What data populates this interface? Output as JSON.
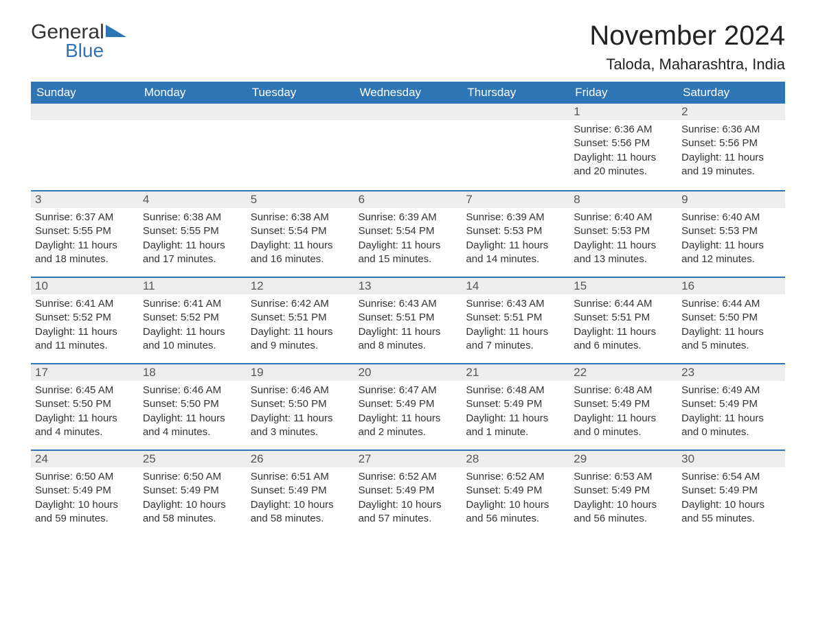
{
  "logo": {
    "general": "General",
    "blue": "Blue"
  },
  "title": "November 2024",
  "location": "Taloda, Maharashtra, India",
  "colors": {
    "header_bg": "#2e75b6",
    "header_text": "#ffffff",
    "row_divider": "#2e75b6",
    "daynum_bg": "#ededed",
    "daynum_text": "#555555",
    "body_text": "#333333",
    "page_bg": "#ffffff"
  },
  "typography": {
    "title_fontsize": 40,
    "location_fontsize": 22,
    "dow_fontsize": 17,
    "body_fontsize": 15
  },
  "days_of_week": [
    "Sunday",
    "Monday",
    "Tuesday",
    "Wednesday",
    "Thursday",
    "Friday",
    "Saturday"
  ],
  "weeks": [
    [
      null,
      null,
      null,
      null,
      null,
      {
        "num": "1",
        "sunrise": "Sunrise: 6:36 AM",
        "sunset": "Sunset: 5:56 PM",
        "daylight": "Daylight: 11 hours and 20 minutes."
      },
      {
        "num": "2",
        "sunrise": "Sunrise: 6:36 AM",
        "sunset": "Sunset: 5:56 PM",
        "daylight": "Daylight: 11 hours and 19 minutes."
      }
    ],
    [
      {
        "num": "3",
        "sunrise": "Sunrise: 6:37 AM",
        "sunset": "Sunset: 5:55 PM",
        "daylight": "Daylight: 11 hours and 18 minutes."
      },
      {
        "num": "4",
        "sunrise": "Sunrise: 6:38 AM",
        "sunset": "Sunset: 5:55 PM",
        "daylight": "Daylight: 11 hours and 17 minutes."
      },
      {
        "num": "5",
        "sunrise": "Sunrise: 6:38 AM",
        "sunset": "Sunset: 5:54 PM",
        "daylight": "Daylight: 11 hours and 16 minutes."
      },
      {
        "num": "6",
        "sunrise": "Sunrise: 6:39 AM",
        "sunset": "Sunset: 5:54 PM",
        "daylight": "Daylight: 11 hours and 15 minutes."
      },
      {
        "num": "7",
        "sunrise": "Sunrise: 6:39 AM",
        "sunset": "Sunset: 5:53 PM",
        "daylight": "Daylight: 11 hours and 14 minutes."
      },
      {
        "num": "8",
        "sunrise": "Sunrise: 6:40 AM",
        "sunset": "Sunset: 5:53 PM",
        "daylight": "Daylight: 11 hours and 13 minutes."
      },
      {
        "num": "9",
        "sunrise": "Sunrise: 6:40 AM",
        "sunset": "Sunset: 5:53 PM",
        "daylight": "Daylight: 11 hours and 12 minutes."
      }
    ],
    [
      {
        "num": "10",
        "sunrise": "Sunrise: 6:41 AM",
        "sunset": "Sunset: 5:52 PM",
        "daylight": "Daylight: 11 hours and 11 minutes."
      },
      {
        "num": "11",
        "sunrise": "Sunrise: 6:41 AM",
        "sunset": "Sunset: 5:52 PM",
        "daylight": "Daylight: 11 hours and 10 minutes."
      },
      {
        "num": "12",
        "sunrise": "Sunrise: 6:42 AM",
        "sunset": "Sunset: 5:51 PM",
        "daylight": "Daylight: 11 hours and 9 minutes."
      },
      {
        "num": "13",
        "sunrise": "Sunrise: 6:43 AM",
        "sunset": "Sunset: 5:51 PM",
        "daylight": "Daylight: 11 hours and 8 minutes."
      },
      {
        "num": "14",
        "sunrise": "Sunrise: 6:43 AM",
        "sunset": "Sunset: 5:51 PM",
        "daylight": "Daylight: 11 hours and 7 minutes."
      },
      {
        "num": "15",
        "sunrise": "Sunrise: 6:44 AM",
        "sunset": "Sunset: 5:51 PM",
        "daylight": "Daylight: 11 hours and 6 minutes."
      },
      {
        "num": "16",
        "sunrise": "Sunrise: 6:44 AM",
        "sunset": "Sunset: 5:50 PM",
        "daylight": "Daylight: 11 hours and 5 minutes."
      }
    ],
    [
      {
        "num": "17",
        "sunrise": "Sunrise: 6:45 AM",
        "sunset": "Sunset: 5:50 PM",
        "daylight": "Daylight: 11 hours and 4 minutes."
      },
      {
        "num": "18",
        "sunrise": "Sunrise: 6:46 AM",
        "sunset": "Sunset: 5:50 PM",
        "daylight": "Daylight: 11 hours and 4 minutes."
      },
      {
        "num": "19",
        "sunrise": "Sunrise: 6:46 AM",
        "sunset": "Sunset: 5:50 PM",
        "daylight": "Daylight: 11 hours and 3 minutes."
      },
      {
        "num": "20",
        "sunrise": "Sunrise: 6:47 AM",
        "sunset": "Sunset: 5:49 PM",
        "daylight": "Daylight: 11 hours and 2 minutes."
      },
      {
        "num": "21",
        "sunrise": "Sunrise: 6:48 AM",
        "sunset": "Sunset: 5:49 PM",
        "daylight": "Daylight: 11 hours and 1 minute."
      },
      {
        "num": "22",
        "sunrise": "Sunrise: 6:48 AM",
        "sunset": "Sunset: 5:49 PM",
        "daylight": "Daylight: 11 hours and 0 minutes."
      },
      {
        "num": "23",
        "sunrise": "Sunrise: 6:49 AM",
        "sunset": "Sunset: 5:49 PM",
        "daylight": "Daylight: 11 hours and 0 minutes."
      }
    ],
    [
      {
        "num": "24",
        "sunrise": "Sunrise: 6:50 AM",
        "sunset": "Sunset: 5:49 PM",
        "daylight": "Daylight: 10 hours and 59 minutes."
      },
      {
        "num": "25",
        "sunrise": "Sunrise: 6:50 AM",
        "sunset": "Sunset: 5:49 PM",
        "daylight": "Daylight: 10 hours and 58 minutes."
      },
      {
        "num": "26",
        "sunrise": "Sunrise: 6:51 AM",
        "sunset": "Sunset: 5:49 PM",
        "daylight": "Daylight: 10 hours and 58 minutes."
      },
      {
        "num": "27",
        "sunrise": "Sunrise: 6:52 AM",
        "sunset": "Sunset: 5:49 PM",
        "daylight": "Daylight: 10 hours and 57 minutes."
      },
      {
        "num": "28",
        "sunrise": "Sunrise: 6:52 AM",
        "sunset": "Sunset: 5:49 PM",
        "daylight": "Daylight: 10 hours and 56 minutes."
      },
      {
        "num": "29",
        "sunrise": "Sunrise: 6:53 AM",
        "sunset": "Sunset: 5:49 PM",
        "daylight": "Daylight: 10 hours and 56 minutes."
      },
      {
        "num": "30",
        "sunrise": "Sunrise: 6:54 AM",
        "sunset": "Sunset: 5:49 PM",
        "daylight": "Daylight: 10 hours and 55 minutes."
      }
    ]
  ]
}
